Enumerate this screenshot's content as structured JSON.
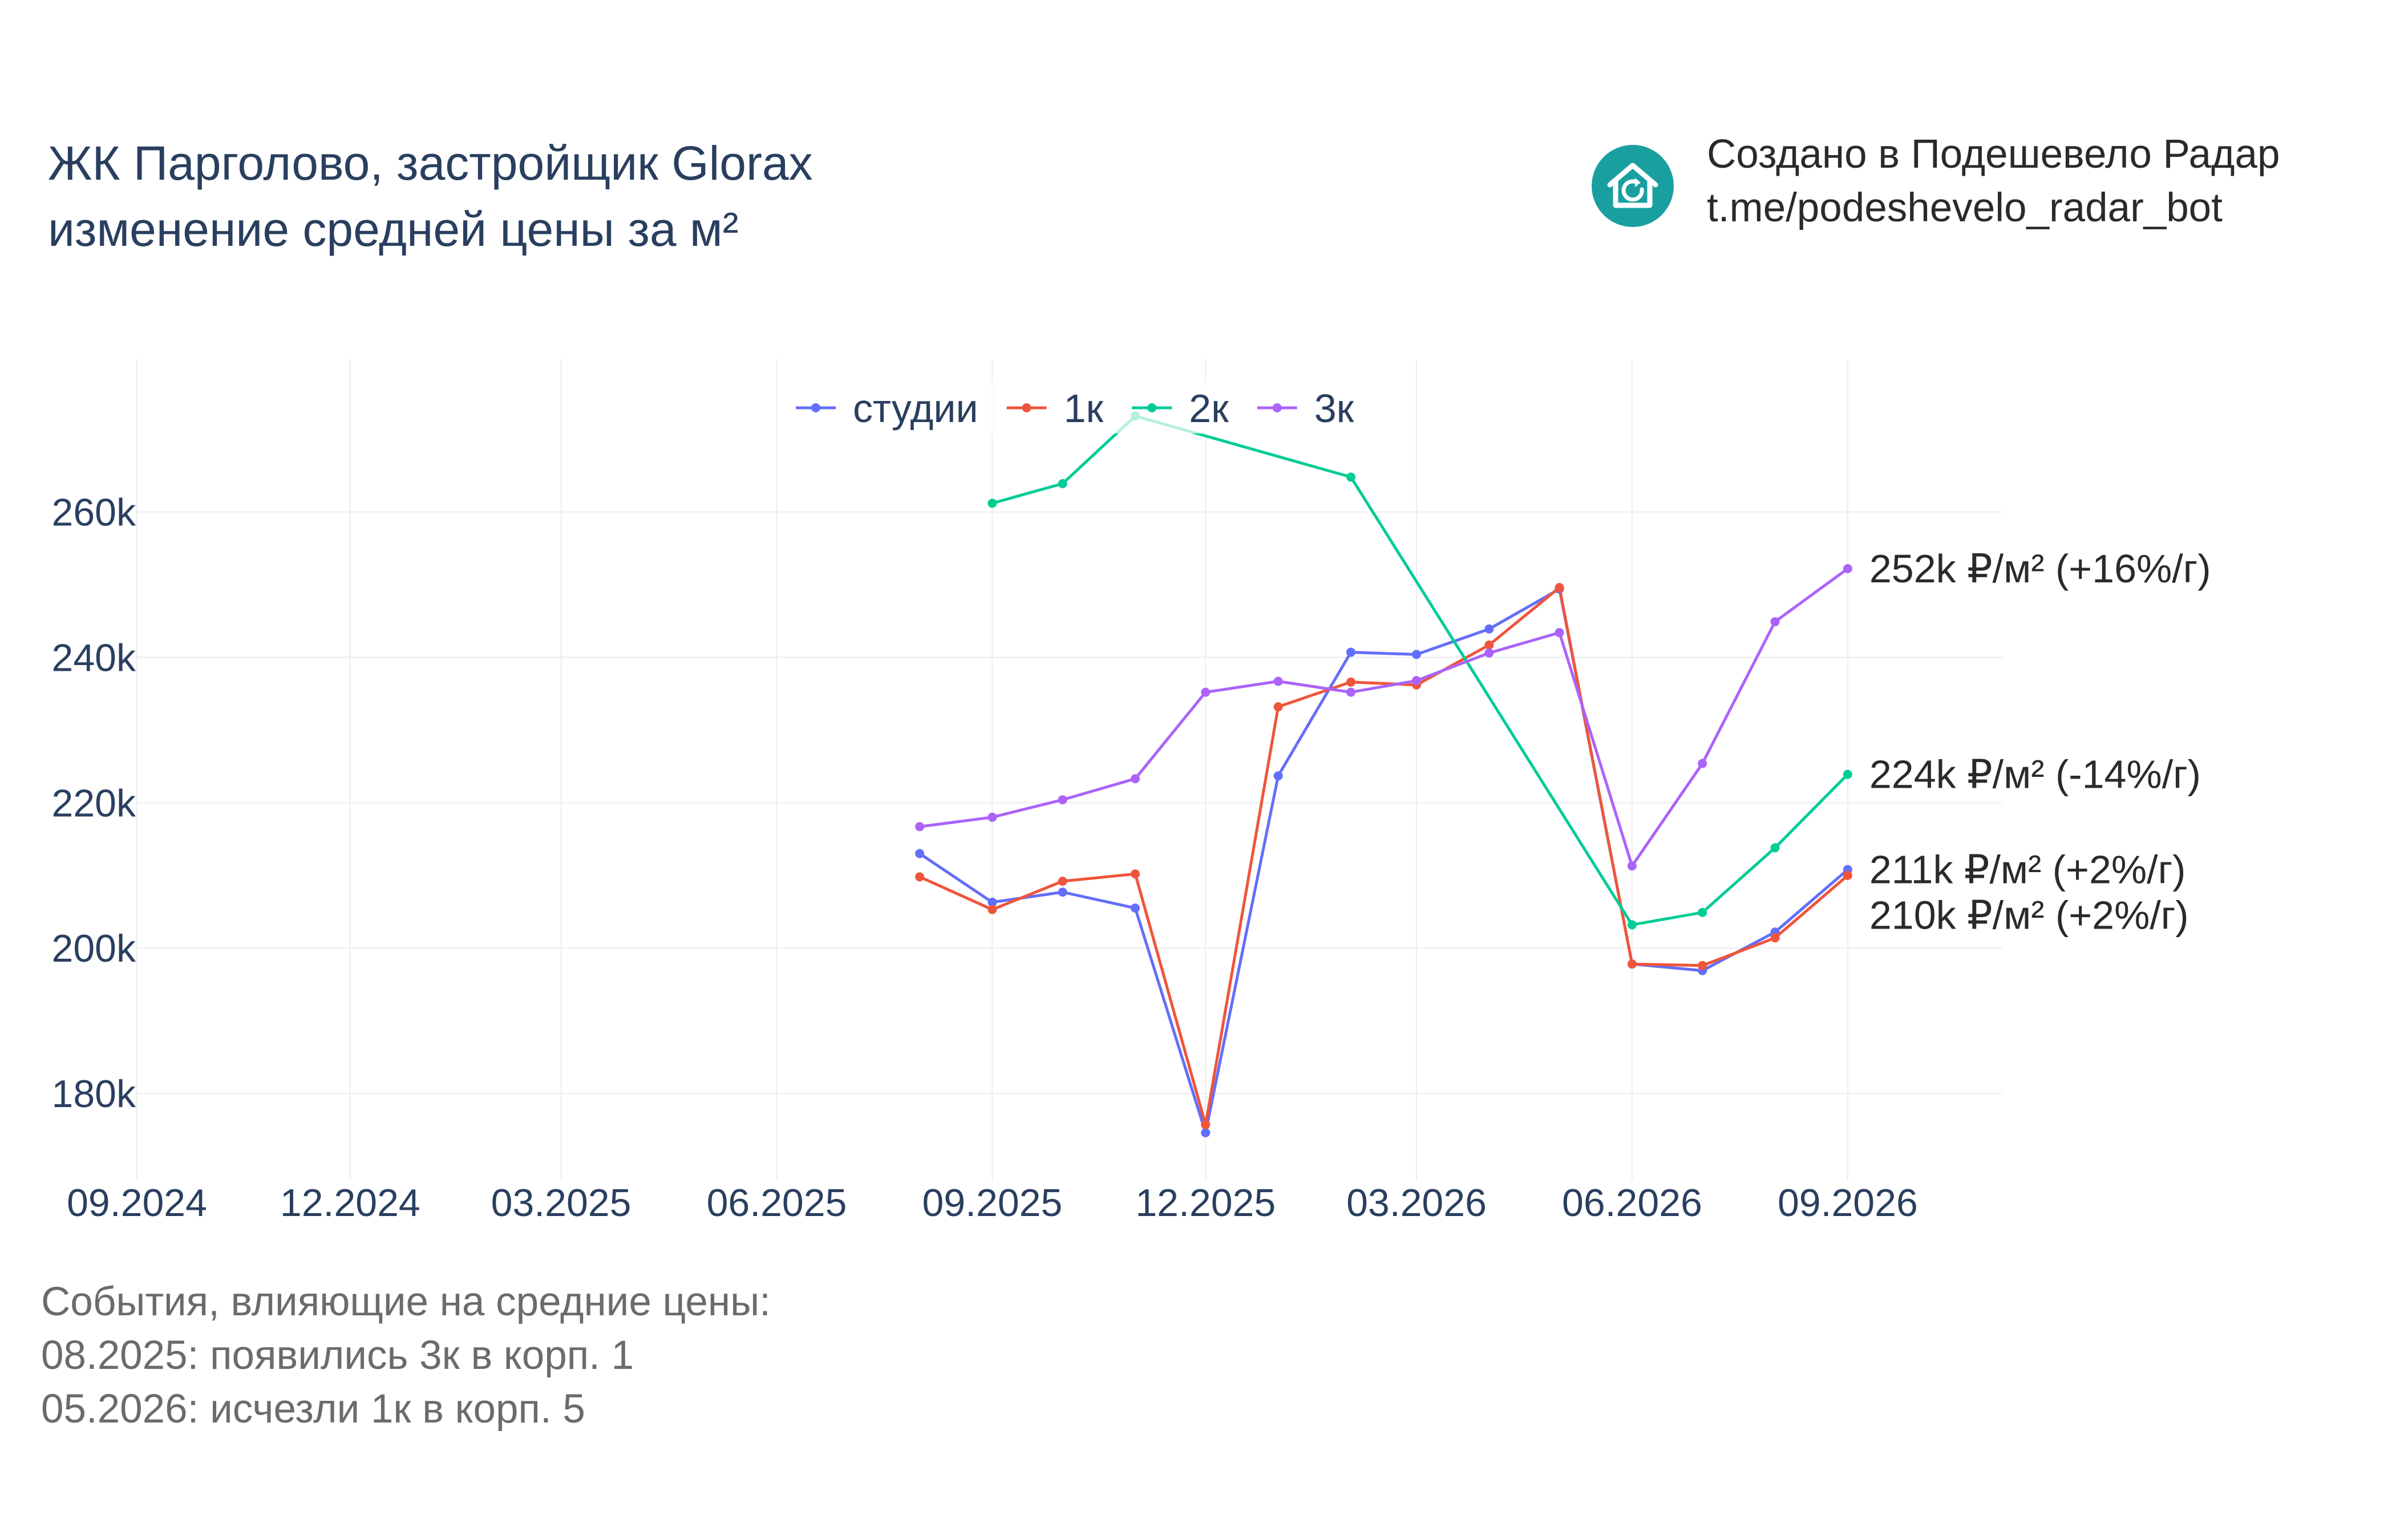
{
  "header": {
    "title_line1": "ЖК Парголово, застройщик Glorax",
    "title_line2": "изменение средней цены за м²"
  },
  "credit": {
    "line1": "Создано в Подешевело Радар",
    "line2": "t.me/podeshevelo_radar_bot",
    "logo_icon": "house-refresh-icon",
    "logo_color": "#1a9fa0"
  },
  "events": {
    "heading": "События, влияющие на средние цены:",
    "items": [
      "08.2025: появились 3к в корп. 1",
      "05.2026: исчезли 1к в корп. 5"
    ]
  },
  "chart_data": {
    "type": "line",
    "title": "ЖК Парголово, застройщик Glorax изменение средней цены за м²",
    "xlabel": "",
    "ylabel": "",
    "x_range": [
      "2024-09-01",
      "2026-11-06"
    ],
    "ylim": [
      168000,
      281000
    ],
    "grid": true,
    "legend_position": "top-center",
    "x_ticks": [
      "09.2024",
      "12.2024",
      "03.2025",
      "06.2025",
      "09.2025",
      "12.2025",
      "03.2026",
      "06.2026",
      "09.2026"
    ],
    "x_tick_dates": [
      "2024-09-01",
      "2024-12-01",
      "2025-03-01",
      "2025-06-01",
      "2025-09-01",
      "2025-12-01",
      "2026-03-01",
      "2026-06-01",
      "2026-09-01"
    ],
    "y_ticks": [
      180000,
      200000,
      220000,
      240000,
      260000
    ],
    "y_tick_labels": [
      "180k",
      "200k",
      "220k",
      "240k",
      "260k"
    ],
    "series": [
      {
        "name": "студии",
        "color": "#636efa",
        "end_label": "211k ₽/м² (+2%/г)",
        "points": [
          [
            "2025-08-01",
            213000
          ],
          [
            "2025-09-01",
            206300
          ],
          [
            "2025-10-01",
            207700
          ],
          [
            "2025-11-01",
            205500
          ],
          [
            "2025-12-01",
            174600
          ],
          [
            "2026-01-01",
            223700
          ],
          [
            "2026-02-01",
            240700
          ],
          [
            "2026-03-01",
            240400
          ],
          [
            "2026-04-01",
            243900
          ],
          [
            "2026-05-01",
            249400
          ],
          [
            "2026-06-01",
            197800
          ],
          [
            "2026-07-01",
            196900
          ],
          [
            "2026-08-01",
            202200
          ],
          [
            "2026-09-01",
            210800
          ]
        ]
      },
      {
        "name": "1к",
        "color": "#ef553b",
        "end_label": "210k ₽/м² (+2%/г)",
        "points": [
          [
            "2025-08-01",
            209800
          ],
          [
            "2025-09-01",
            205300
          ],
          [
            "2025-10-01",
            209200
          ],
          [
            "2025-11-01",
            210200
          ],
          [
            "2025-12-01",
            175700
          ],
          [
            "2026-01-01",
            233200
          ],
          [
            "2026-02-01",
            236600
          ],
          [
            "2026-03-01",
            236200
          ],
          [
            "2026-04-01",
            241700
          ],
          [
            "2026-05-01",
            249600
          ],
          [
            "2026-06-01",
            197800
          ],
          [
            "2026-07-01",
            197600
          ],
          [
            "2026-08-01",
            201400
          ],
          [
            "2026-09-01",
            210000
          ]
        ]
      },
      {
        "name": "2к",
        "color": "#00cc96",
        "end_label": "224k ₽/м² (-14%/г)",
        "points": [
          [
            "2025-09-01",
            261200
          ],
          [
            "2025-10-01",
            263900
          ],
          [
            "2025-11-01",
            273200
          ],
          [
            "2026-02-01",
            264800
          ],
          [
            "2026-06-01",
            203200
          ],
          [
            "2026-07-01",
            204900
          ],
          [
            "2026-08-01",
            213800
          ],
          [
            "2026-09-01",
            223900
          ]
        ]
      },
      {
        "name": "3к",
        "color": "#ab63fa",
        "end_label": "252k ₽/м² (+16%/г)",
        "points": [
          [
            "2025-08-01",
            216700
          ],
          [
            "2025-09-01",
            218000
          ],
          [
            "2025-10-01",
            220400
          ],
          [
            "2025-11-01",
            223300
          ],
          [
            "2025-12-01",
            235200
          ],
          [
            "2026-01-01",
            236700
          ],
          [
            "2026-02-01",
            235200
          ],
          [
            "2026-03-01",
            236800
          ],
          [
            "2026-04-01",
            240600
          ],
          [
            "2026-05-01",
            243400
          ],
          [
            "2026-06-01",
            211300
          ],
          [
            "2026-07-01",
            225400
          ],
          [
            "2026-08-01",
            244900
          ],
          [
            "2026-09-01",
            252200
          ]
        ]
      }
    ]
  }
}
